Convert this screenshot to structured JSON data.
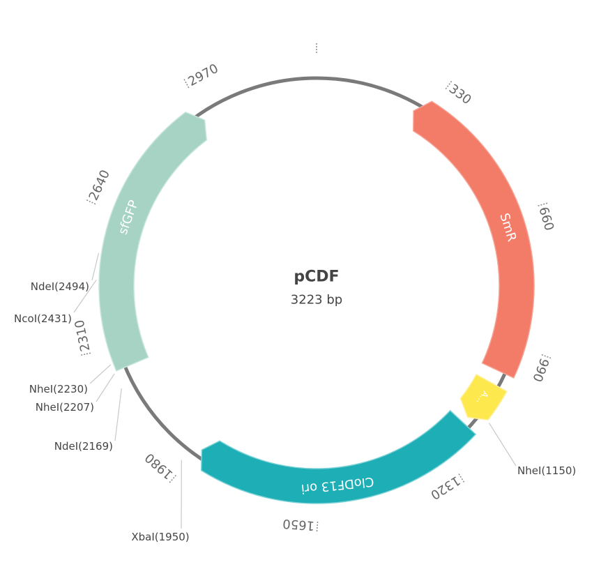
{
  "plasmid": {
    "name": "pCDF",
    "length": {
      "value": 3223,
      "label": "3223 bp"
    }
  },
  "ticks": [
    330,
    660,
    990,
    1320,
    1650,
    1980,
    2310,
    2640,
    2970
  ],
  "features": [
    {
      "label": "SmR"
    },
    {
      "label": "A…"
    },
    {
      "label": "CloDF13 ori"
    },
    {
      "label": "sfGFP"
    }
  ],
  "sites": [
    {
      "value": 1150,
      "label": "NheI(1150)"
    },
    {
      "value": 2494,
      "label": "NdeI(2494)"
    },
    {
      "value": 2431,
      "label": "NcoI(2431)"
    },
    {
      "value": 2230,
      "label": "NheI(2230)"
    },
    {
      "value": 2207,
      "label": "NheI(2207)"
    },
    {
      "value": 2169,
      "label": "NdeI(2169)"
    },
    {
      "value": 1950,
      "label": "XbaI(1950)"
    }
  ]
}
